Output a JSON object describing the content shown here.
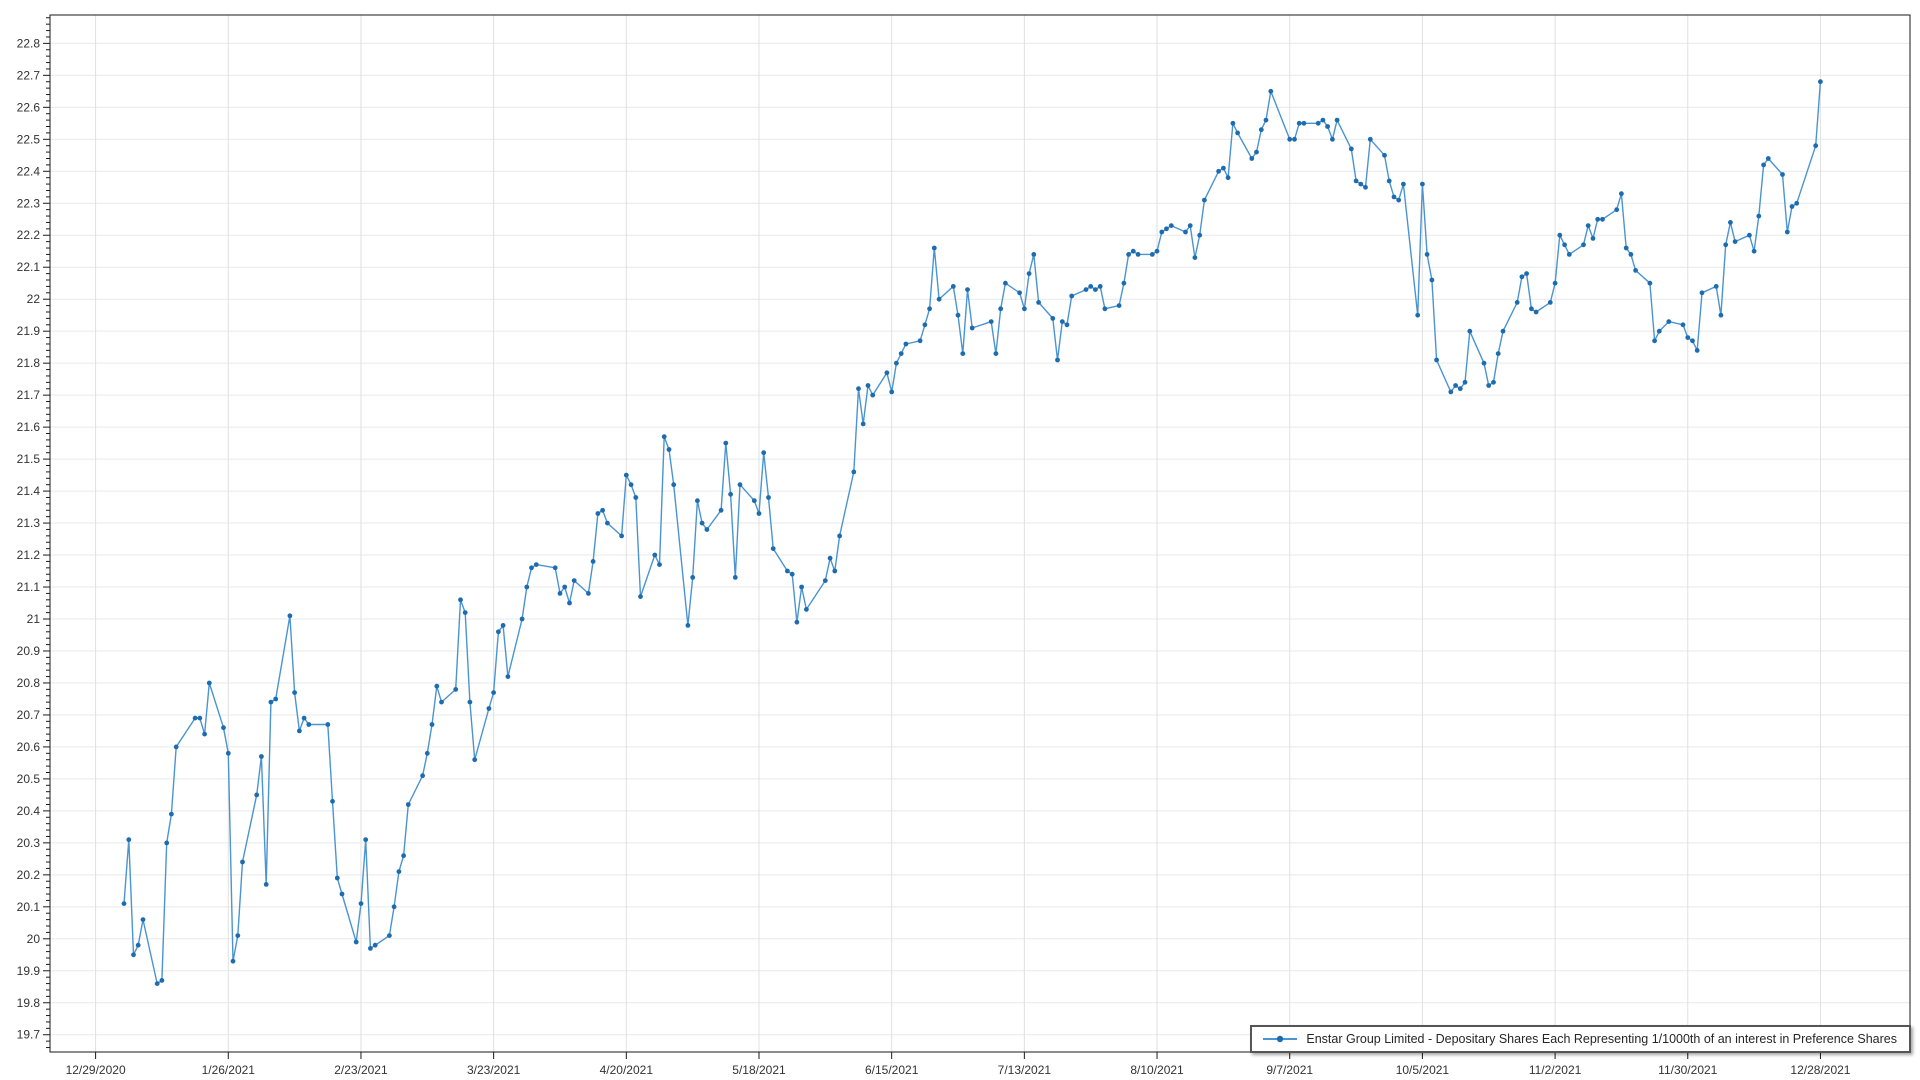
{
  "chart_data": {
    "type": "line",
    "title": "",
    "xlabel": "",
    "ylabel": "",
    "grid": true,
    "legend_position": "bottom-right",
    "x_axis": {
      "start": "12/29/2020",
      "end": "12/28/2021",
      "tick_interval_days": 28,
      "tick_labels": [
        "12/29/2020",
        "1/26/2021",
        "2/23/2021",
        "3/23/2021",
        "4/20/2021",
        "5/18/2021",
        "6/15/2021",
        "7/13/2021",
        "8/10/2021",
        "9/7/2021",
        "10/5/2021",
        "11/2/2021",
        "11/30/2021",
        "12/28/2021"
      ]
    },
    "y_axis": {
      "min": 19.65,
      "max": 22.89,
      "major_step": 0.1,
      "minor_step": 0.02,
      "tick_labels": [
        "22.8",
        "22.7",
        "22.6",
        "22.5",
        "22.4",
        "22.3",
        "22.2",
        "22.1",
        "22",
        "21.9",
        "21.8",
        "21.7",
        "21.6",
        "21.5",
        "21.4",
        "21.3",
        "21.2",
        "21.1",
        "21",
        "20.9",
        "20.8",
        "20.7",
        "20.6",
        "20.5",
        "20.4",
        "20.3",
        "20.2",
        "20.1",
        "20",
        "19.9",
        "19.8",
        "19.7"
      ]
    },
    "colors": {
      "line": "#4a94d2",
      "marker": "#1e6cb0",
      "grid_h": "#e9e9e9",
      "grid_v": "#e0e0e0",
      "axis": "#1a1a1a",
      "tick_text": "#333333"
    },
    "series": [
      {
        "name": "Enstar Group Limited - Depositary Shares Each Representing 1/1000th of an interest in Preference Shares",
        "points": [
          [
            "1/4/2021",
            20.11
          ],
          [
            "1/5/2021",
            20.31
          ],
          [
            "1/6/2021",
            19.95
          ],
          [
            "1/7/2021",
            19.98
          ],
          [
            "1/8/2021",
            20.06
          ],
          [
            "1/11/2021",
            19.86
          ],
          [
            "1/12/2021",
            19.87
          ],
          [
            "1/13/2021",
            20.3
          ],
          [
            "1/14/2021",
            20.39
          ],
          [
            "1/15/2021",
            20.6
          ],
          [
            "1/19/2021",
            20.69
          ],
          [
            "1/20/2021",
            20.69
          ],
          [
            "1/21/2021",
            20.64
          ],
          [
            "1/22/2021",
            20.8
          ],
          [
            "1/25/2021",
            20.66
          ],
          [
            "1/26/2021",
            20.58
          ],
          [
            "1/27/2021",
            19.93
          ],
          [
            "1/28/2021",
            20.01
          ],
          [
            "1/29/2021",
            20.24
          ],
          [
            "2/1/2021",
            20.45
          ],
          [
            "2/2/2021",
            20.57
          ],
          [
            "2/3/2021",
            20.17
          ],
          [
            "2/4/2021",
            20.74
          ],
          [
            "2/5/2021",
            20.75
          ],
          [
            "2/8/2021",
            21.01
          ],
          [
            "2/9/2021",
            20.77
          ],
          [
            "2/10/2021",
            20.65
          ],
          [
            "2/11/2021",
            20.69
          ],
          [
            "2/12/2021",
            20.67
          ],
          [
            "2/16/2021",
            20.67
          ],
          [
            "2/17/2021",
            20.43
          ],
          [
            "2/18/2021",
            20.19
          ],
          [
            "2/19/2021",
            20.14
          ],
          [
            "2/22/2021",
            19.99
          ],
          [
            "2/23/2021",
            20.11
          ],
          [
            "2/24/2021",
            20.31
          ],
          [
            "2/25/2021",
            19.97
          ],
          [
            "2/26/2021",
            19.98
          ],
          [
            "3/1/2021",
            20.01
          ],
          [
            "3/2/2021",
            20.1
          ],
          [
            "3/3/2021",
            20.21
          ],
          [
            "3/4/2021",
            20.26
          ],
          [
            "3/5/2021",
            20.42
          ],
          [
            "3/8/2021",
            20.51
          ],
          [
            "3/9/2021",
            20.58
          ],
          [
            "3/10/2021",
            20.67
          ],
          [
            "3/11/2021",
            20.79
          ],
          [
            "3/12/2021",
            20.74
          ],
          [
            "3/15/2021",
            20.78
          ],
          [
            "3/16/2021",
            21.06
          ],
          [
            "3/17/2021",
            21.02
          ],
          [
            "3/18/2021",
            20.74
          ],
          [
            "3/19/2021",
            20.56
          ],
          [
            "3/22/2021",
            20.72
          ],
          [
            "3/23/2021",
            20.77
          ],
          [
            "3/24/2021",
            20.96
          ],
          [
            "3/25/2021",
            20.98
          ],
          [
            "3/26/2021",
            20.82
          ],
          [
            "3/29/2021",
            21.0
          ],
          [
            "3/30/2021",
            21.1
          ],
          [
            "3/31/2021",
            21.16
          ],
          [
            "4/1/2021",
            21.17
          ],
          [
            "4/5/2021",
            21.16
          ],
          [
            "4/6/2021",
            21.08
          ],
          [
            "4/7/2021",
            21.1
          ],
          [
            "4/8/2021",
            21.05
          ],
          [
            "4/9/2021",
            21.12
          ],
          [
            "4/12/2021",
            21.08
          ],
          [
            "4/13/2021",
            21.18
          ],
          [
            "4/14/2021",
            21.33
          ],
          [
            "4/15/2021",
            21.34
          ],
          [
            "4/16/2021",
            21.3
          ],
          [
            "4/19/2021",
            21.26
          ],
          [
            "4/20/2021",
            21.45
          ],
          [
            "4/21/2021",
            21.42
          ],
          [
            "4/22/2021",
            21.38
          ],
          [
            "4/23/2021",
            21.07
          ],
          [
            "4/26/2021",
            21.2
          ],
          [
            "4/27/2021",
            21.17
          ],
          [
            "4/28/2021",
            21.57
          ],
          [
            "4/29/2021",
            21.53
          ],
          [
            "4/30/2021",
            21.42
          ],
          [
            "5/3/2021",
            20.98
          ],
          [
            "5/4/2021",
            21.13
          ],
          [
            "5/5/2021",
            21.37
          ],
          [
            "5/6/2021",
            21.3
          ],
          [
            "5/7/2021",
            21.28
          ],
          [
            "5/10/2021",
            21.34
          ],
          [
            "5/11/2021",
            21.55
          ],
          [
            "5/12/2021",
            21.39
          ],
          [
            "5/13/2021",
            21.13
          ],
          [
            "5/14/2021",
            21.42
          ],
          [
            "5/17/2021",
            21.37
          ],
          [
            "5/18/2021",
            21.33
          ],
          [
            "5/19/2021",
            21.52
          ],
          [
            "5/20/2021",
            21.38
          ],
          [
            "5/21/2021",
            21.22
          ],
          [
            "5/24/2021",
            21.15
          ],
          [
            "5/25/2021",
            21.14
          ],
          [
            "5/26/2021",
            20.99
          ],
          [
            "5/27/2021",
            21.1
          ],
          [
            "5/28/2021",
            21.03
          ],
          [
            "6/1/2021",
            21.12
          ],
          [
            "6/2/2021",
            21.19
          ],
          [
            "6/3/2021",
            21.15
          ],
          [
            "6/4/2021",
            21.26
          ],
          [
            "6/7/2021",
            21.46
          ],
          [
            "6/8/2021",
            21.72
          ],
          [
            "6/9/2021",
            21.61
          ],
          [
            "6/10/2021",
            21.73
          ],
          [
            "6/11/2021",
            21.7
          ],
          [
            "6/14/2021",
            21.77
          ],
          [
            "6/15/2021",
            21.71
          ],
          [
            "6/16/2021",
            21.8
          ],
          [
            "6/17/2021",
            21.83
          ],
          [
            "6/18/2021",
            21.86
          ],
          [
            "6/21/2021",
            21.87
          ],
          [
            "6/22/2021",
            21.92
          ],
          [
            "6/23/2021",
            21.97
          ],
          [
            "6/24/2021",
            22.16
          ],
          [
            "6/25/2021",
            22.0
          ],
          [
            "6/28/2021",
            22.04
          ],
          [
            "6/29/2021",
            21.95
          ],
          [
            "6/30/2021",
            21.83
          ],
          [
            "7/1/2021",
            22.03
          ],
          [
            "7/2/2021",
            21.91
          ],
          [
            "7/6/2021",
            21.93
          ],
          [
            "7/7/2021",
            21.83
          ],
          [
            "7/8/2021",
            21.97
          ],
          [
            "7/9/2021",
            22.05
          ],
          [
            "7/12/2021",
            22.02
          ],
          [
            "7/13/2021",
            21.97
          ],
          [
            "7/14/2021",
            22.08
          ],
          [
            "7/15/2021",
            22.14
          ],
          [
            "7/16/2021",
            21.99
          ],
          [
            "7/19/2021",
            21.94
          ],
          [
            "7/20/2021",
            21.81
          ],
          [
            "7/21/2021",
            21.93
          ],
          [
            "7/22/2021",
            21.92
          ],
          [
            "7/23/2021",
            22.01
          ],
          [
            "7/26/2021",
            22.03
          ],
          [
            "7/27/2021",
            22.04
          ],
          [
            "7/28/2021",
            22.03
          ],
          [
            "7/29/2021",
            22.04
          ],
          [
            "7/30/2021",
            21.97
          ],
          [
            "8/2/2021",
            21.98
          ],
          [
            "8/3/2021",
            22.05
          ],
          [
            "8/4/2021",
            22.14
          ],
          [
            "8/5/2021",
            22.15
          ],
          [
            "8/6/2021",
            22.14
          ],
          [
            "8/9/2021",
            22.14
          ],
          [
            "8/10/2021",
            22.15
          ],
          [
            "8/11/2021",
            22.21
          ],
          [
            "8/12/2021",
            22.22
          ],
          [
            "8/13/2021",
            22.23
          ],
          [
            "8/16/2021",
            22.21
          ],
          [
            "8/17/2021",
            22.23
          ],
          [
            "8/18/2021",
            22.13
          ],
          [
            "8/19/2021",
            22.2
          ],
          [
            "8/20/2021",
            22.31
          ],
          [
            "8/23/2021",
            22.4
          ],
          [
            "8/24/2021",
            22.41
          ],
          [
            "8/25/2021",
            22.38
          ],
          [
            "8/26/2021",
            22.55
          ],
          [
            "8/27/2021",
            22.52
          ],
          [
            "8/30/2021",
            22.44
          ],
          [
            "8/31/2021",
            22.46
          ],
          [
            "9/1/2021",
            22.53
          ],
          [
            "9/2/2021",
            22.56
          ],
          [
            "9/3/2021",
            22.65
          ],
          [
            "9/7/2021",
            22.5
          ],
          [
            "9/8/2021",
            22.5
          ],
          [
            "9/9/2021",
            22.55
          ],
          [
            "9/10/2021",
            22.55
          ],
          [
            "9/13/2021",
            22.55
          ],
          [
            "9/14/2021",
            22.56
          ],
          [
            "9/15/2021",
            22.54
          ],
          [
            "9/16/2021",
            22.5
          ],
          [
            "9/17/2021",
            22.56
          ],
          [
            "9/20/2021",
            22.47
          ],
          [
            "9/21/2021",
            22.37
          ],
          [
            "9/22/2021",
            22.36
          ],
          [
            "9/23/2021",
            22.35
          ],
          [
            "9/24/2021",
            22.5
          ],
          [
            "9/27/2021",
            22.45
          ],
          [
            "9/28/2021",
            22.37
          ],
          [
            "9/29/2021",
            22.32
          ],
          [
            "9/30/2021",
            22.31
          ],
          [
            "10/1/2021",
            22.36
          ],
          [
            "10/4/2021",
            21.95
          ],
          [
            "10/5/2021",
            22.36
          ],
          [
            "10/6/2021",
            22.14
          ],
          [
            "10/7/2021",
            22.06
          ],
          [
            "10/8/2021",
            21.81
          ],
          [
            "10/11/2021",
            21.71
          ],
          [
            "10/12/2021",
            21.73
          ],
          [
            "10/13/2021",
            21.72
          ],
          [
            "10/14/2021",
            21.74
          ],
          [
            "10/15/2021",
            21.9
          ],
          [
            "10/18/2021",
            21.8
          ],
          [
            "10/19/2021",
            21.73
          ],
          [
            "10/20/2021",
            21.74
          ],
          [
            "10/21/2021",
            21.83
          ],
          [
            "10/22/2021",
            21.9
          ],
          [
            "10/25/2021",
            21.99
          ],
          [
            "10/26/2021",
            22.07
          ],
          [
            "10/27/2021",
            22.08
          ],
          [
            "10/28/2021",
            21.97
          ],
          [
            "10/29/2021",
            21.96
          ],
          [
            "11/1/2021",
            21.99
          ],
          [
            "11/2/2021",
            22.05
          ],
          [
            "11/3/2021",
            22.2
          ],
          [
            "11/4/2021",
            22.17
          ],
          [
            "11/5/2021",
            22.14
          ],
          [
            "11/8/2021",
            22.17
          ],
          [
            "11/9/2021",
            22.23
          ],
          [
            "11/10/2021",
            22.19
          ],
          [
            "11/11/2021",
            22.25
          ],
          [
            "11/12/2021",
            22.25
          ],
          [
            "11/15/2021",
            22.28
          ],
          [
            "11/16/2021",
            22.33
          ],
          [
            "11/17/2021",
            22.16
          ],
          [
            "11/18/2021",
            22.14
          ],
          [
            "11/19/2021",
            22.09
          ],
          [
            "11/22/2021",
            22.05
          ],
          [
            "11/23/2021",
            21.87
          ],
          [
            "11/24/2021",
            21.9
          ],
          [
            "11/26/2021",
            21.93
          ],
          [
            "11/29/2021",
            21.92
          ],
          [
            "11/30/2021",
            21.88
          ],
          [
            "12/1/2021",
            21.87
          ],
          [
            "12/2/2021",
            21.84
          ],
          [
            "12/3/2021",
            22.02
          ],
          [
            "12/6/2021",
            22.04
          ],
          [
            "12/7/2021",
            21.95
          ],
          [
            "12/8/2021",
            22.17
          ],
          [
            "12/9/2021",
            22.24
          ],
          [
            "12/10/2021",
            22.18
          ],
          [
            "12/13/2021",
            22.2
          ],
          [
            "12/14/2021",
            22.15
          ],
          [
            "12/15/2021",
            22.26
          ],
          [
            "12/16/2021",
            22.42
          ],
          [
            "12/17/2021",
            22.44
          ],
          [
            "12/20/2021",
            22.39
          ],
          [
            "12/21/2021",
            22.21
          ],
          [
            "12/22/2021",
            22.29
          ],
          [
            "12/23/2021",
            22.3
          ],
          [
            "12/27/2021",
            22.48
          ],
          [
            "12/28/2021",
            22.68
          ]
        ]
      }
    ]
  },
  "legend": {
    "label": "Enstar Group Limited - Depositary Shares Each Representing 1/1000th of an interest in Preference Shares"
  }
}
